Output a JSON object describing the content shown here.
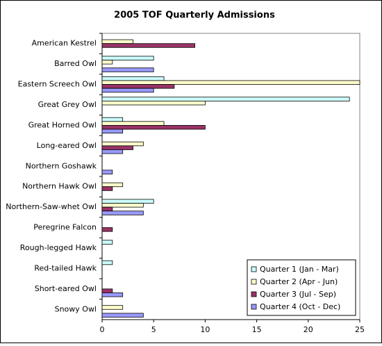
{
  "chart_data": {
    "type": "bar",
    "orientation": "horizontal",
    "title": "2005 TOF Quarterly Admissions",
    "categories": [
      "American Kestrel",
      "Barred Owl",
      "Eastern Screech Owl",
      "Great Grey Owl",
      "Great Horned Owl",
      "Long-eared Owl",
      "Northern Goshawk",
      "Northern Hawk Owl",
      "Northern-Saw-whet Owl",
      "Peregrine Falcon",
      "Rough-legged Hawk",
      "Red-tailed Hawk",
      "Short-eared Owl",
      "Snowy Owl"
    ],
    "series": [
      {
        "name": "Quarter 1 (Jan - Mar)",
        "color": "#ccffff",
        "values": [
          0,
          5,
          6,
          24,
          2,
          0,
          0,
          0,
          5,
          0,
          1,
          1,
          0,
          0
        ]
      },
      {
        "name": "Quarter 2 (Apr - Jun)",
        "color": "#ffffcc",
        "values": [
          3,
          1,
          25,
          10,
          6,
          4,
          0,
          2,
          4,
          0,
          0,
          0,
          0,
          2
        ]
      },
      {
        "name": "Quarter 3 (Jul - Sep)",
        "color": "#993366",
        "values": [
          9,
          0,
          7,
          0,
          10,
          3,
          0,
          1,
          1,
          1,
          0,
          0,
          1,
          0
        ]
      },
      {
        "name": "Quarter 4 (Oct - Dec)",
        "color": "#9999ff",
        "values": [
          0,
          5,
          5,
          0,
          2,
          2,
          1,
          0,
          4,
          0,
          0,
          0,
          2,
          4
        ]
      }
    ],
    "xlim": [
      0,
      25
    ],
    "xticks": [
      0,
      5,
      10,
      15,
      20,
      25
    ],
    "grid": false,
    "legend": "lower right"
  }
}
